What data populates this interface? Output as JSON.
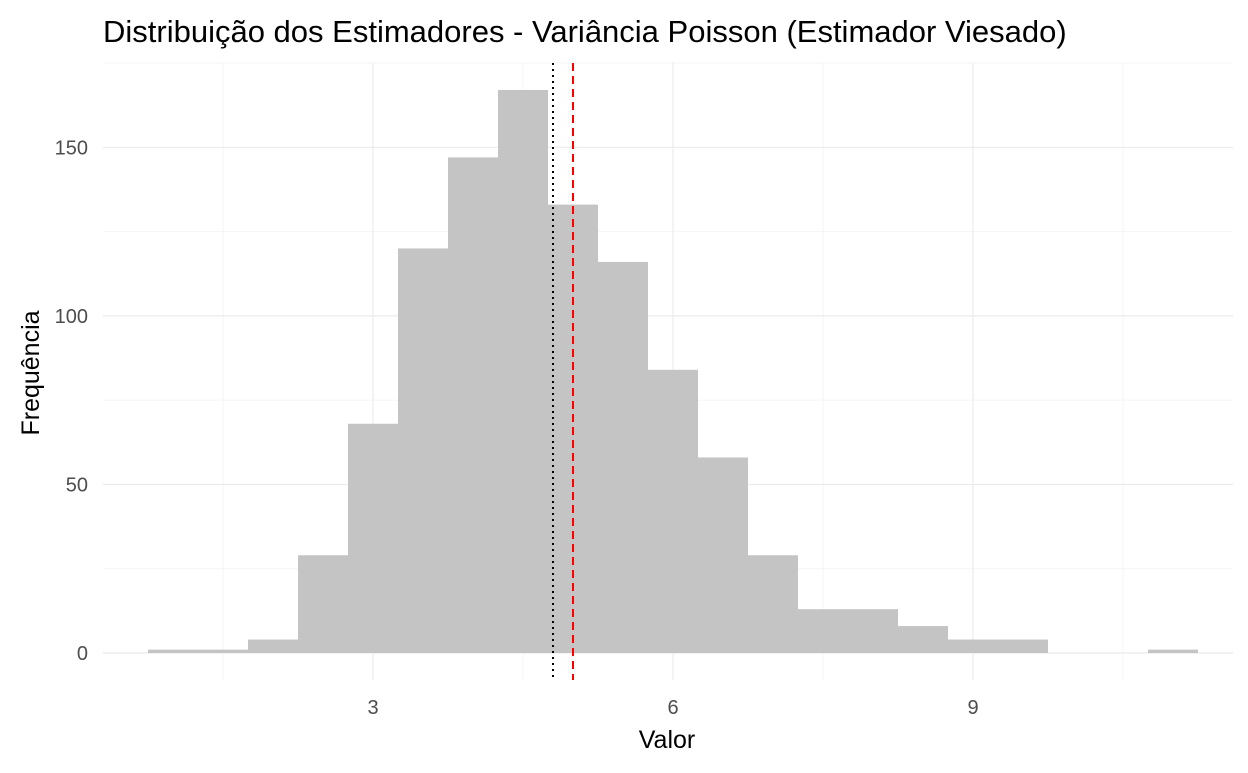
{
  "chart_data": {
    "type": "bar",
    "subtype": "histogram",
    "title": "Distribuição dos Estimadores - Variância Poisson (Estimador Viesado)",
    "xlabel": "Valor",
    "ylabel": "Frequência",
    "xlim": [
      0.3,
      11.6
    ],
    "ylim": [
      -8,
      175
    ],
    "x_ticks": [
      3,
      6,
      9
    ],
    "y_ticks": [
      0,
      50,
      100,
      150
    ],
    "bin_width": 0.5,
    "bins": [
      {
        "x0": 0.75,
        "x1": 1.25,
        "count": 1
      },
      {
        "x0": 1.25,
        "x1": 1.75,
        "count": 1
      },
      {
        "x0": 1.75,
        "x1": 2.25,
        "count": 4
      },
      {
        "x0": 2.25,
        "x1": 2.75,
        "count": 29
      },
      {
        "x0": 2.75,
        "x1": 3.25,
        "count": 68
      },
      {
        "x0": 3.25,
        "x1": 3.75,
        "count": 120
      },
      {
        "x0": 3.75,
        "x1": 4.25,
        "count": 147
      },
      {
        "x0": 4.25,
        "x1": 4.75,
        "count": 167
      },
      {
        "x0": 4.75,
        "x1": 5.25,
        "count": 133
      },
      {
        "x0": 5.25,
        "x1": 5.75,
        "count": 116
      },
      {
        "x0": 5.75,
        "x1": 6.25,
        "count": 84
      },
      {
        "x0": 6.25,
        "x1": 6.75,
        "count": 58
      },
      {
        "x0": 6.75,
        "x1": 7.25,
        "count": 29
      },
      {
        "x0": 7.25,
        "x1": 7.75,
        "count": 13
      },
      {
        "x0": 7.75,
        "x1": 8.25,
        "count": 13
      },
      {
        "x0": 8.25,
        "x1": 8.75,
        "count": 8
      },
      {
        "x0": 8.75,
        "x1": 9.25,
        "count": 4
      },
      {
        "x0": 9.25,
        "x1": 9.75,
        "count": 4
      },
      {
        "x0": 9.75,
        "x1": 10.25,
        "count": 0
      },
      {
        "x0": 10.25,
        "x1": 10.75,
        "count": 0
      },
      {
        "x0": 10.75,
        "x1": 11.25,
        "count": 1
      }
    ],
    "bar_color": "#c4c4c4",
    "reference_lines": [
      {
        "x": 4.8,
        "style": "dotted",
        "color": "#000000"
      },
      {
        "x": 5.0,
        "style": "dashed",
        "color": "#ff0000"
      }
    ],
    "grid": true,
    "legend": "none"
  }
}
